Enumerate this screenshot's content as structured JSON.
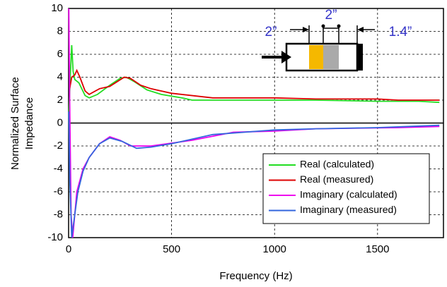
{
  "chart_data": {
    "type": "line",
    "xlabel": "Frequency (Hz)",
    "ylabel": [
      "Normalized Surface",
      "Impedance"
    ],
    "xlim": [
      0,
      1820
    ],
    "ylim": [
      -10,
      10
    ],
    "xticks": [
      0,
      500,
      1000,
      1500
    ],
    "yticks": [
      -10,
      -8,
      -6,
      -4,
      -2,
      0,
      2,
      4,
      6,
      8,
      10
    ],
    "grid": true,
    "legend": "lower right",
    "annotations": [
      "2”",
      "2”",
      "1.4”"
    ],
    "series": [
      {
        "name": "Real (calculated)",
        "color": "#22dd22",
        "x": [
          2,
          8,
          15,
          22,
          30,
          50,
          80,
          100,
          140,
          200,
          250,
          280,
          320,
          380,
          450,
          550,
          600,
          800,
          1000,
          1200,
          1500,
          1700,
          1800
        ],
        "values": [
          1,
          4,
          6.8,
          4.5,
          3.8,
          3.5,
          2.4,
          2.2,
          2.5,
          3.3,
          3.9,
          4,
          3.6,
          2.9,
          2.5,
          2.2,
          2,
          2,
          2,
          2,
          1.9,
          1.9,
          1.8
        ]
      },
      {
        "name": "Real (measured)",
        "color": "#dd0000",
        "x": [
          5,
          15,
          30,
          40,
          55,
          80,
          100,
          150,
          200,
          270,
          300,
          350,
          400,
          500,
          700,
          1000,
          1200,
          1500,
          1600,
          1800
        ],
        "values": [
          3,
          4,
          4.2,
          4.6,
          4,
          2.8,
          2.5,
          3,
          3.2,
          4,
          3.9,
          3.3,
          3,
          2.6,
          2.2,
          2.2,
          2.1,
          2.1,
          2,
          2
        ]
      },
      {
        "name": "Imaginary (calculated)",
        "color": "#ee00ee",
        "x": [
          1,
          5,
          12,
          20,
          40,
          70,
          100,
          150,
          200,
          250,
          300,
          400,
          600,
          800,
          1000,
          1200,
          1600,
          1800
        ],
        "values": [
          10,
          2,
          -8,
          -10,
          -6,
          -4,
          -3,
          -1.8,
          -1.2,
          -1.5,
          -2,
          -2,
          -1.5,
          -0.8,
          -0.7,
          -0.5,
          -0.4,
          -0.3
        ]
      },
      {
        "name": "Imaginary (measured)",
        "color": "#3366dd",
        "x": [
          1,
          6,
          15,
          30,
          45,
          70,
          100,
          150,
          200,
          260,
          330,
          400,
          500,
          700,
          1000,
          1200,
          1500,
          1800
        ],
        "values": [
          1,
          -5,
          -10,
          -8,
          -6,
          -4.2,
          -3,
          -1.8,
          -1.3,
          -1.6,
          -2.2,
          -2.1,
          -1.8,
          -1,
          -0.6,
          -0.5,
          -0.4,
          -0.2
        ]
      }
    ]
  }
}
